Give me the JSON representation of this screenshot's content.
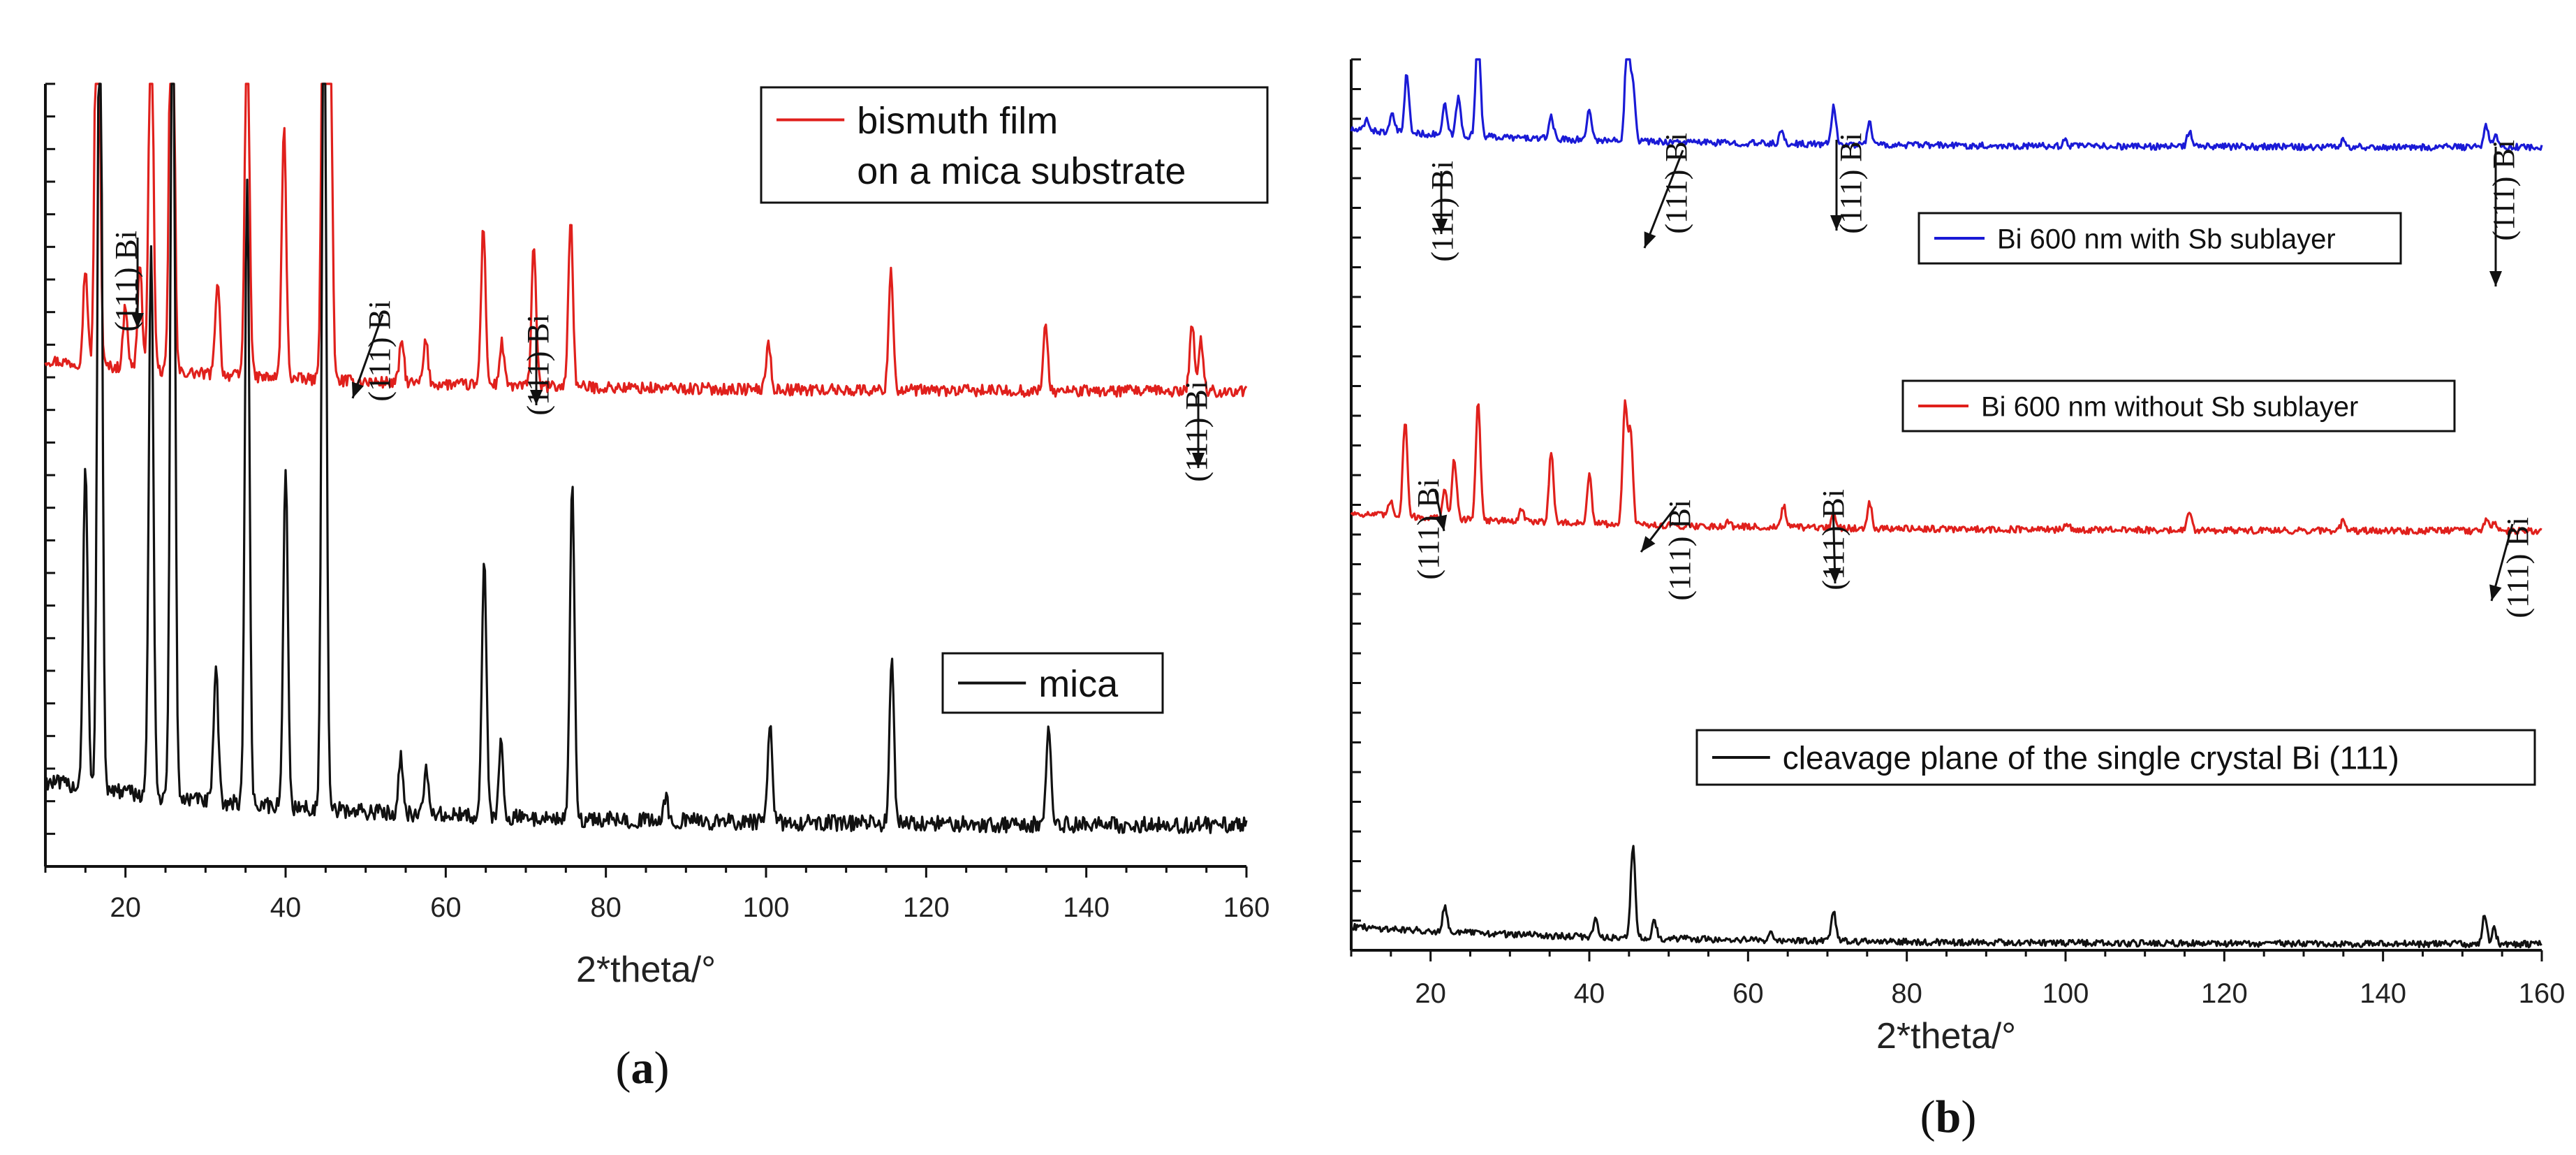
{
  "chart_data": [
    {
      "id": "a",
      "type": "line",
      "caption_letter": "a",
      "xlabel": "2*theta/°",
      "ylabel": "",
      "xlim": [
        10,
        160
      ],
      "xticks": [
        20,
        40,
        60,
        80,
        100,
        120,
        140,
        160
      ],
      "legends": [
        {
          "series": "bismuth film",
          "lines": [
            "bismuth film",
            "on a mica substrate"
          ],
          "color": "#e0201c"
        },
        {
          "series": "mica",
          "lines": [
            "mica"
          ],
          "color": "#111111"
        }
      ],
      "series": [
        {
          "name": "bismuth film on a mica substrate",
          "color": "#e0201c",
          "baseline": 0.42,
          "peaks": [
            {
              "x": 15.0,
              "h": 0.18
            },
            {
              "x": 16.5,
              "h": 1.05
            },
            {
              "x": 20.0,
              "h": 0.12
            },
            {
              "x": 21.8,
              "h": 0.2
            },
            {
              "x": 23.2,
              "h": 0.72
            },
            {
              "x": 25.8,
              "h": 1.05
            },
            {
              "x": 31.5,
              "h": 0.18
            },
            {
              "x": 35.2,
              "h": 0.7
            },
            {
              "x": 39.8,
              "h": 0.47
            },
            {
              "x": 44.8,
              "h": 1.05
            },
            {
              "x": 45.5,
              "h": 0.8
            },
            {
              "x": 54.5,
              "h": 0.08
            },
            {
              "x": 57.5,
              "h": 0.08
            },
            {
              "x": 64.7,
              "h": 0.3
            },
            {
              "x": 67.0,
              "h": 0.08
            },
            {
              "x": 71.0,
              "h": 0.27
            },
            {
              "x": 75.6,
              "h": 0.32
            },
            {
              "x": 100.3,
              "h": 0.09
            },
            {
              "x": 115.6,
              "h": 0.23
            },
            {
              "x": 134.9,
              "h": 0.12
            },
            {
              "x": 153.2,
              "h": 0.13
            },
            {
              "x": 154.3,
              "h": 0.1
            }
          ]
        },
        {
          "name": "mica",
          "color": "#111111",
          "baseline": 0.06,
          "peaks": [
            {
              "x": 15.0,
              "h": 0.44
            },
            {
              "x": 16.8,
              "h": 1.2
            },
            {
              "x": 23.2,
              "h": 0.75
            },
            {
              "x": 25.9,
              "h": 1.2
            },
            {
              "x": 31.3,
              "h": 0.18
            },
            {
              "x": 35.2,
              "h": 0.85
            },
            {
              "x": 40.0,
              "h": 0.46
            },
            {
              "x": 44.8,
              "h": 1.2
            },
            {
              "x": 54.4,
              "h": 0.08
            },
            {
              "x": 57.6,
              "h": 0.06
            },
            {
              "x": 64.8,
              "h": 0.35
            },
            {
              "x": 66.9,
              "h": 0.1
            },
            {
              "x": 75.8,
              "h": 0.45
            },
            {
              "x": 87.5,
              "h": 0.03
            },
            {
              "x": 100.5,
              "h": 0.13
            },
            {
              "x": 115.7,
              "h": 0.22
            },
            {
              "x": 135.3,
              "h": 0.13
            }
          ]
        }
      ],
      "annotations": [
        {
          "text": "(111) Bi",
          "x": 21.8
        },
        {
          "text": "(111) Bi",
          "x": 46.5
        },
        {
          "text": "(111) Bi",
          "x": 71.0
        },
        {
          "text": "(111) Bi",
          "x": 153.5
        }
      ]
    },
    {
      "id": "b",
      "type": "line",
      "caption_letter": "b",
      "xlabel": "2*theta/°",
      "ylabel": "",
      "xlim": [
        10,
        160
      ],
      "xticks": [
        20,
        40,
        60,
        80,
        100,
        120,
        140,
        160
      ],
      "legends": [
        {
          "series": "Bi 600 nm with Sb sublayer",
          "lines": [
            "Bi 600 nm with Sb sublayer"
          ],
          "color": "#1a1ad6"
        },
        {
          "series": "Bi 600 nm without Sb sublayer",
          "lines": [
            "Bi 600 nm without Sb sublayer"
          ],
          "color": "#e0201c"
        },
        {
          "series": "cleavage plane of the single crystal Bi (111)",
          "lines": [
            "cleavage plane of the single crystal Bi (111)"
          ],
          "color": "#111111"
        }
      ],
      "series": [
        {
          "name": "Bi 600 nm with Sb sublayer",
          "color": "#1a1ad6",
          "baseline": 0.7,
          "peaks": [
            {
              "x": 12.0,
              "h": 0.04
            },
            {
              "x": 15.2,
              "h": 0.06
            },
            {
              "x": 17.0,
              "h": 0.2
            },
            {
              "x": 21.8,
              "h": 0.1
            },
            {
              "x": 23.5,
              "h": 0.13
            },
            {
              "x": 26.0,
              "h": 0.4
            },
            {
              "x": 35.2,
              "h": 0.08
            },
            {
              "x": 40.0,
              "h": 0.11
            },
            {
              "x": 44.8,
              "h": 0.4
            },
            {
              "x": 45.5,
              "h": 0.2
            },
            {
              "x": 64.2,
              "h": 0.04
            },
            {
              "x": 70.8,
              "h": 0.13
            },
            {
              "x": 75.3,
              "h": 0.08
            },
            {
              "x": 100.0,
              "h": 0.02
            },
            {
              "x": 115.6,
              "h": 0.05
            },
            {
              "x": 135.0,
              "h": 0.03
            },
            {
              "x": 153.0,
              "h": 0.07
            },
            {
              "x": 154.2,
              "h": 0.04
            }
          ]
        },
        {
          "name": "Bi 600 nm without Sb sublayer",
          "color": "#e0201c",
          "baseline": 0.36,
          "peaks": [
            {
              "x": 15.0,
              "h": 0.05
            },
            {
              "x": 16.8,
              "h": 0.32
            },
            {
              "x": 21.8,
              "h": 0.09
            },
            {
              "x": 23.0,
              "h": 0.2
            },
            {
              "x": 26.0,
              "h": 0.4
            },
            {
              "x": 31.5,
              "h": 0.04
            },
            {
              "x": 35.2,
              "h": 0.24
            },
            {
              "x": 40.0,
              "h": 0.16
            },
            {
              "x": 44.5,
              "h": 0.4
            },
            {
              "x": 45.2,
              "h": 0.3
            },
            {
              "x": 57.5,
              "h": 0.02
            },
            {
              "x": 64.5,
              "h": 0.07
            },
            {
              "x": 70.8,
              "h": 0.05
            },
            {
              "x": 75.3,
              "h": 0.09
            },
            {
              "x": 100.2,
              "h": 0.02
            },
            {
              "x": 115.6,
              "h": 0.06
            },
            {
              "x": 135.0,
              "h": 0.04
            },
            {
              "x": 153.0,
              "h": 0.04
            },
            {
              "x": 154.0,
              "h": 0.03
            }
          ]
        },
        {
          "name": "cleavage plane of the single crystal Bi (111)",
          "color": "#111111",
          "baseline": 0.02,
          "peaks": [
            {
              "x": 21.8,
              "h": 0.09
            },
            {
              "x": 40.8,
              "h": 0.06
            },
            {
              "x": 45.5,
              "h": 0.31
            },
            {
              "x": 48.2,
              "h": 0.06
            },
            {
              "x": 62.8,
              "h": 0.03
            },
            {
              "x": 70.8,
              "h": 0.1
            },
            {
              "x": 152.8,
              "h": 0.1
            },
            {
              "x": 154.0,
              "h": 0.05
            }
          ]
        }
      ],
      "annotations": [
        {
          "text": "(111) Bi",
          "x": 21.8
        },
        {
          "text": "(111) Bi",
          "x": 46.0
        },
        {
          "text": "(111) Bi",
          "x": 70.8
        },
        {
          "text": "(111) Bi",
          "x": 152.8
        },
        {
          "text": "(111) Bi",
          "x": 21.8
        },
        {
          "text": "(111) Bi",
          "x": 46.0
        },
        {
          "text": "(111) Bi",
          "x": 70.8
        },
        {
          "text": "(111) Bi",
          "x": 153.0
        }
      ]
    }
  ]
}
